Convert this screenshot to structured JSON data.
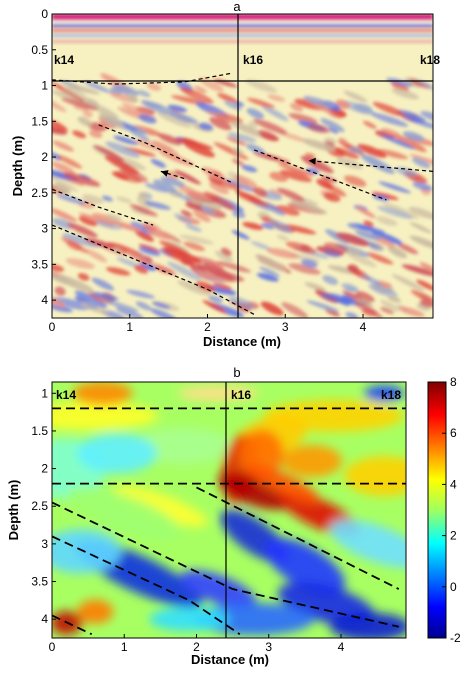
{
  "figure": {
    "panel_a": {
      "label": "a",
      "xlabel": "Distance (m)",
      "ylabel": "Depth (m)",
      "x_ticks": [
        "0",
        "1",
        "2",
        "3",
        "4"
      ],
      "y_ticks": [
        "0",
        "0.5",
        "1",
        "1.5",
        "2",
        "2.5",
        "3",
        "3.5",
        "4"
      ],
      "markers": [
        "k14",
        "k16",
        "k18"
      ]
    },
    "panel_b": {
      "label": "b",
      "xlabel": "Distance (m)",
      "ylabel": "Depth (m)",
      "x_ticks": [
        "0",
        "1",
        "2",
        "3",
        "4"
      ],
      "y_ticks": [
        "1",
        "1.5",
        "2",
        "2.5",
        "3",
        "3.5",
        "4"
      ],
      "markers": [
        "k14",
        "k16",
        "k18"
      ],
      "colorbar_ticks": [
        "8",
        "6",
        "4",
        "2",
        "0",
        "-2"
      ]
    }
  },
  "chart_data": [
    {
      "type": "heatmap",
      "panel": "a",
      "xlabel": "Distance (m)",
      "ylabel": "Depth (m)",
      "xlim": [
        0,
        4.9
      ],
      "ylim": [
        0,
        4.25
      ],
      "markers": [
        {
          "label": "k14",
          "x": 0.0
        },
        {
          "label": "k16",
          "x": 2.4
        },
        {
          "label": "k18",
          "x": 4.9
        }
      ],
      "reflectors": [
        [
          [
            0.0,
            0.92
          ],
          [
            0.8,
            0.98
          ],
          [
            1.7,
            0.95
          ],
          [
            2.3,
            0.83
          ]
        ],
        [
          [
            0.6,
            1.55
          ],
          [
            1.2,
            1.8
          ],
          [
            1.8,
            2.1
          ],
          [
            2.3,
            2.35
          ]
        ],
        [
          [
            2.6,
            1.9
          ],
          [
            3.2,
            2.15
          ],
          [
            3.7,
            2.35
          ],
          [
            4.3,
            2.6
          ]
        ],
        [
          [
            0.0,
            2.45
          ],
          [
            0.6,
            2.7
          ],
          [
            1.3,
            2.95
          ]
        ],
        [
          [
            0.0,
            2.95
          ],
          [
            1.0,
            3.4
          ],
          [
            2.0,
            3.85
          ],
          [
            2.6,
            4.2
          ]
        ]
      ],
      "arrows": [
        {
          "from": [
            1.7,
            2.3
          ],
          "to": [
            1.4,
            2.2
          ]
        },
        {
          "from": [
            4.9,
            2.2
          ],
          "to": [
            3.3,
            2.05
          ]
        }
      ]
    },
    {
      "type": "heatmap",
      "panel": "b",
      "xlabel": "Distance (m)",
      "ylabel": "Depth (m)",
      "xlim": [
        0,
        4.9
      ],
      "ylim": [
        0.85,
        4.25
      ],
      "zlim": [
        -2,
        8
      ],
      "markers": [
        {
          "label": "k14",
          "x": 0.0
        },
        {
          "label": "k16",
          "x": 2.4
        },
        {
          "label": "k18",
          "x": 4.9
        }
      ],
      "horizontal_lines": [
        1.2,
        2.2
      ],
      "diagonal_lines": [
        [
          [
            2.0,
            2.25
          ],
          [
            4.8,
            3.6
          ]
        ],
        [
          [
            0.0,
            2.45
          ],
          [
            2.5,
            3.6
          ],
          [
            4.8,
            4.1
          ]
        ],
        [
          [
            0.0,
            2.9
          ],
          [
            1.9,
            3.75
          ],
          [
            2.6,
            4.2
          ]
        ],
        [
          [
            0.0,
            3.95
          ],
          [
            0.55,
            4.2
          ]
        ]
      ]
    }
  ]
}
